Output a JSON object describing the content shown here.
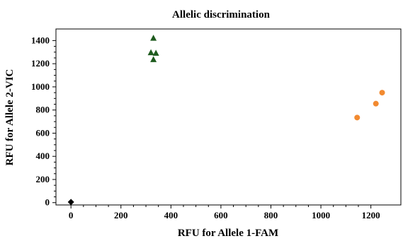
{
  "chart_data": {
    "type": "scatter",
    "title": "Allelic discrimination",
    "xlabel": "RFU for Allele 1-FAM",
    "ylabel": "RFU for Allele 2-VIC",
    "xlim": [
      -60,
      1320
    ],
    "ylim": [
      -20,
      1500
    ],
    "xticks": [
      0,
      200,
      400,
      600,
      800,
      1000,
      1200
    ],
    "yticks": [
      0,
      200,
      400,
      600,
      800,
      1000,
      1200,
      1400
    ],
    "grid": false,
    "series": [
      {
        "marker": "triangle",
        "color": "#1e5b1e",
        "x": [
          330,
          320,
          340,
          330
        ],
        "y": [
          1420,
          1295,
          1290,
          1235
        ]
      },
      {
        "marker": "circle",
        "color": "#f28a30",
        "x": [
          1145,
          1220,
          1245
        ],
        "y": [
          735,
          855,
          950
        ]
      },
      {
        "marker": "diamond",
        "color": "#000000",
        "x": [
          0
        ],
        "y": [
          5
        ]
      }
    ]
  }
}
